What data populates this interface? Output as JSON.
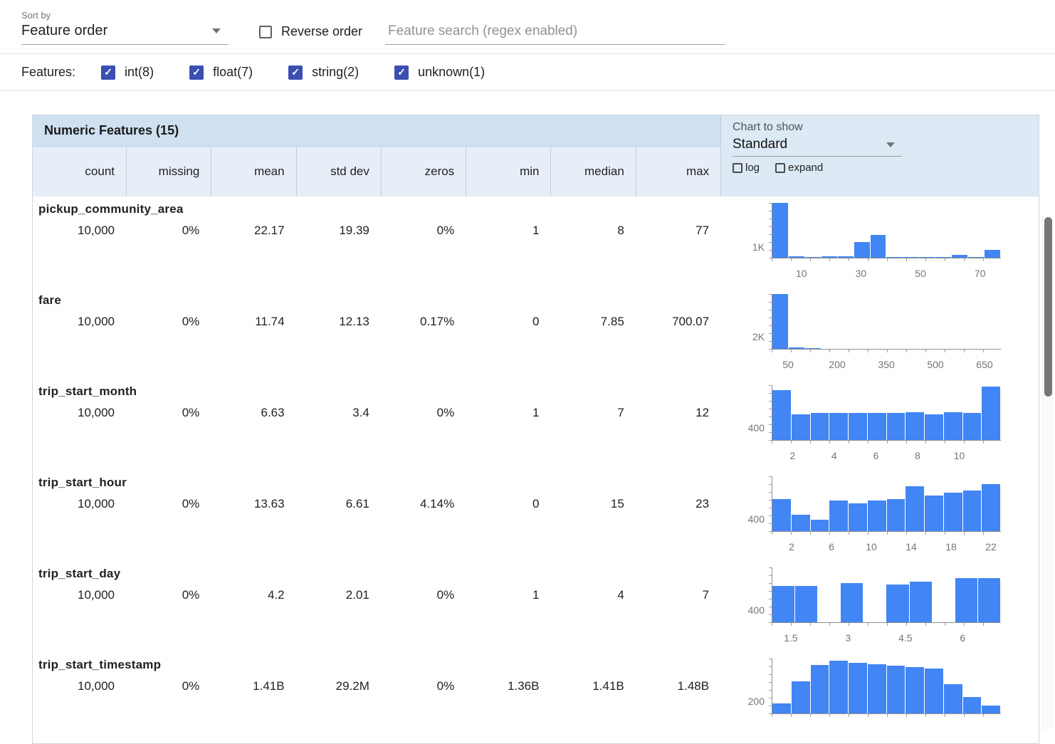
{
  "controls": {
    "sort_by_label": "Sort by",
    "sort_by_value": "Feature order",
    "reverse_order_label": "Reverse order",
    "search_placeholder": "Feature search (regex enabled)"
  },
  "filters": {
    "label": "Features:",
    "items": [
      {
        "label": "int(8)",
        "checked": true
      },
      {
        "label": "float(7)",
        "checked": true
      },
      {
        "label": "string(2)",
        "checked": true
      },
      {
        "label": "unknown(1)",
        "checked": true
      }
    ]
  },
  "table": {
    "title": "Numeric Features (15)",
    "columns": [
      "count",
      "missing",
      "mean",
      "std dev",
      "zeros",
      "min",
      "median",
      "max"
    ],
    "rows": [
      {
        "name": "pickup_community_area",
        "stats": [
          "10,000",
          "0%",
          "22.17",
          "19.39",
          "0%",
          "1",
          "8",
          "77"
        ]
      },
      {
        "name": "fare",
        "stats": [
          "10,000",
          "0%",
          "11.74",
          "12.13",
          "0.17%",
          "0",
          "7.85",
          "700.07"
        ]
      },
      {
        "name": "trip_start_month",
        "stats": [
          "10,000",
          "0%",
          "6.63",
          "3.4",
          "0%",
          "1",
          "7",
          "12"
        ]
      },
      {
        "name": "trip_start_hour",
        "stats": [
          "10,000",
          "0%",
          "13.63",
          "6.61",
          "4.14%",
          "0",
          "15",
          "23"
        ]
      },
      {
        "name": "trip_start_day",
        "stats": [
          "10,000",
          "0%",
          "4.2",
          "2.01",
          "0%",
          "1",
          "4",
          "7"
        ]
      },
      {
        "name": "trip_start_timestamp",
        "stats": [
          "10,000",
          "0%",
          "1.41B",
          "29.2M",
          "0%",
          "1.36B",
          "1.41B",
          "1.48B"
        ]
      }
    ]
  },
  "chart_panel": {
    "label": "Chart to show",
    "chart_type_value": "Standard",
    "log_label": "log",
    "expand_label": "expand"
  },
  "chart_data": [
    {
      "type": "bar",
      "feature": "pickup_community_area",
      "bar_color": "#4285f4",
      "x_min": 0,
      "x_max": 77,
      "ymax": 5000,
      "y_tick": {
        "label": "1K",
        "value": 1000
      },
      "x_ticks": [
        {
          "label": "10",
          "value": 10
        },
        {
          "label": "30",
          "value": 30
        },
        {
          "label": "50",
          "value": 50
        },
        {
          "label": "70",
          "value": 70
        }
      ],
      "values": [
        5000,
        150,
        60,
        100,
        150,
        1400,
        2100,
        80,
        40,
        40,
        50,
        250,
        60,
        700
      ]
    },
    {
      "type": "bar",
      "feature": "fare",
      "bar_color": "#4285f4",
      "x_min": 0,
      "x_max": 700,
      "ymax": 8800,
      "y_tick": {
        "label": "2K",
        "value": 2000
      },
      "x_ticks": [
        {
          "label": "50",
          "value": 50
        },
        {
          "label": "200",
          "value": 200
        },
        {
          "label": "350",
          "value": 350
        },
        {
          "label": "500",
          "value": 500
        },
        {
          "label": "650",
          "value": 650
        }
      ],
      "values": [
        8800,
        250,
        90,
        50,
        35,
        25,
        18,
        12,
        10,
        8,
        6,
        5,
        4,
        3
      ]
    },
    {
      "type": "bar",
      "feature": "trip_start_month",
      "bar_color": "#4285f4",
      "x_min": 1,
      "x_max": 12,
      "ymax": 1700,
      "y_tick": {
        "label": "400",
        "value": 400
      },
      "x_ticks": [
        {
          "label": "2",
          "value": 2
        },
        {
          "label": "4",
          "value": 4
        },
        {
          "label": "6",
          "value": 6
        },
        {
          "label": "8",
          "value": 8
        },
        {
          "label": "10",
          "value": 10
        }
      ],
      "values": [
        1550,
        800,
        830,
        840,
        830,
        830,
        840,
        870,
        800,
        870,
        840,
        1660
      ]
    },
    {
      "type": "bar",
      "feature": "trip_start_hour",
      "bar_color": "#4285f4",
      "x_min": 0,
      "x_max": 23,
      "ymax": 1700,
      "y_tick": {
        "label": "400",
        "value": 400
      },
      "x_ticks": [
        {
          "label": "2",
          "value": 2
        },
        {
          "label": "6",
          "value": 6
        },
        {
          "label": "10",
          "value": 10
        },
        {
          "label": "14",
          "value": 14
        },
        {
          "label": "18",
          "value": 18
        },
        {
          "label": "22",
          "value": 22
        }
      ],
      "values": [
        1000,
        500,
        350,
        950,
        850,
        950,
        1000,
        1400,
        1100,
        1200,
        1250,
        1450
      ]
    },
    {
      "type": "bar",
      "feature": "trip_start_day",
      "bar_color": "#4285f4",
      "x_min": 1,
      "x_max": 7,
      "ymax": 1750,
      "y_tick": {
        "label": "400",
        "value": 400
      },
      "x_ticks": [
        {
          "label": "1.5",
          "value": 1.5
        },
        {
          "label": "3",
          "value": 3
        },
        {
          "label": "4.5",
          "value": 4.5
        },
        {
          "label": "6",
          "value": 6
        }
      ],
      "values": [
        1150,
        1150,
        0,
        1250,
        0,
        1200,
        1300,
        0,
        1400,
        1400
      ]
    },
    {
      "type": "bar",
      "feature": "trip_start_timestamp",
      "bar_color": "#4285f4",
      "x_min": 0,
      "x_max": 1,
      "ymax": 850,
      "y_tick": {
        "label": "200",
        "value": 200
      },
      "x_ticks": [],
      "values": [
        150,
        500,
        750,
        820,
        780,
        760,
        740,
        720,
        700,
        450,
        250,
        120
      ]
    }
  ]
}
